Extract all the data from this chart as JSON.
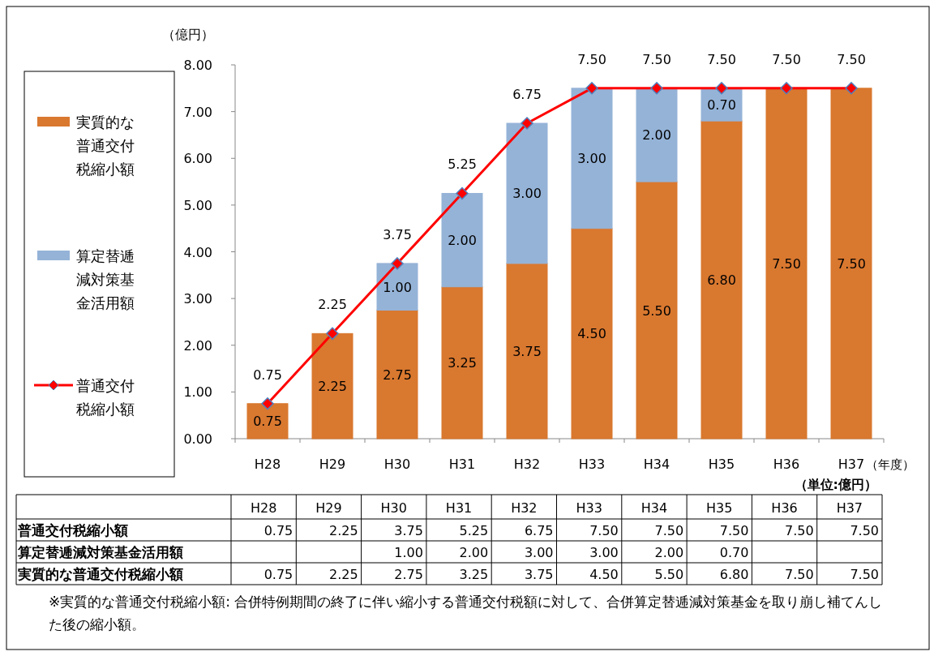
{
  "chart_data": {
    "type": "bar",
    "stacked": true,
    "ylabel": "（億円）",
    "xlabel": "（年度）",
    "categories": [
      "H28",
      "H29",
      "H30",
      "H31",
      "H32",
      "H33",
      "H34",
      "H35",
      "H36",
      "H37"
    ],
    "ylim": [
      0,
      8
    ],
    "yticks": [
      {
        "value": 0,
        "label": "0.00"
      },
      {
        "value": 1,
        "label": "1.00"
      },
      {
        "value": 2,
        "label": "2.00"
      },
      {
        "value": 3,
        "label": "3.00"
      },
      {
        "value": 4,
        "label": "4.00"
      },
      {
        "value": 5,
        "label": "5.00"
      },
      {
        "value": 6,
        "label": "6.00"
      },
      {
        "value": 7,
        "label": "7.00"
      },
      {
        "value": 8,
        "label": "8.00"
      }
    ],
    "grid": false,
    "legend": "left",
    "series": [
      {
        "name": "実質的な普通交付税縮小額",
        "color": "#d9782f",
        "values": [
          0.75,
          2.25,
          2.75,
          3.25,
          3.75,
          4.5,
          5.5,
          6.8,
          7.5,
          7.5
        ],
        "value_labels": [
          "0.75",
          "2.25",
          "2.75",
          "3.25",
          "3.75",
          "4.50",
          "5.50",
          "6.80",
          "7.50",
          "7.50"
        ]
      },
      {
        "name": "算定替逓減対策基金活用額",
        "color": "#95b3d7",
        "values": [
          null,
          null,
          1,
          2,
          3,
          3,
          2,
          0.7,
          null,
          null
        ],
        "value_labels": [
          null,
          null,
          "1.00",
          "2.00",
          "3.00",
          "3.00",
          "2.00",
          "0.70",
          null,
          null
        ]
      },
      {
        "name": "普通交付税縮小額",
        "type": "line",
        "color": "#ff0000",
        "marker": "diamond",
        "values": [
          0.75,
          2.25,
          3.75,
          5.25,
          6.75,
          7.5,
          7.5,
          7.5,
          7.5,
          7.5
        ],
        "value_labels": [
          "0.75",
          "2.25",
          "3.75",
          "5.25",
          "6.75",
          "7.50",
          "7.50",
          "7.50",
          "7.50",
          "7.50"
        ]
      }
    ],
    "annotations": [
      "（単位:億円）",
      "※実質的な普通交付税縮小額: 合併特例期間の終了に伴い縮小する普通交付税額に対して、合併算定替逓減対策基金を取り崩し補てんした後の縮小額。"
    ]
  }
}
